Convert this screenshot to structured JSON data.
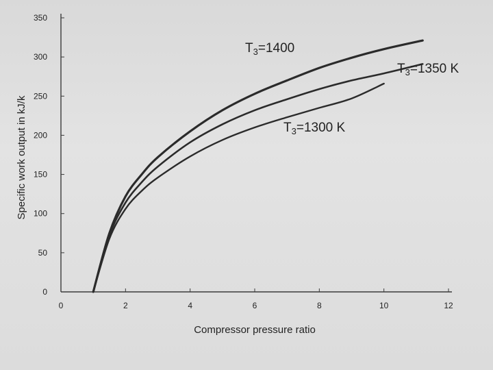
{
  "chart_data": {
    "type": "line",
    "title": "",
    "xlabel": "Compressor pressure ratio",
    "ylabel": "Specific work output in kJ/k",
    "xlim": [
      0,
      12
    ],
    "ylim": [
      0,
      350
    ],
    "x_ticks": [
      "0",
      "2",
      "4",
      "6",
      "8",
      "10",
      "12"
    ],
    "y_ticks": [
      "0",
      "50",
      "100",
      "150",
      "200",
      "250",
      "300",
      "350"
    ],
    "grid": false,
    "legend": "none",
    "series": [
      {
        "name": "T3=1400",
        "label_prefix": "T",
        "label_sub": "3",
        "label_rest": "=1400",
        "x": [
          1,
          1.5,
          2,
          2.5,
          3,
          4,
          5,
          6,
          7,
          8,
          9,
          10,
          11.2
        ],
        "values": [
          0,
          75,
          122,
          150,
          172,
          205,
          232,
          253,
          270,
          286,
          299,
          310,
          321
        ]
      },
      {
        "name": "T3=1350 K",
        "label_prefix": "T",
        "label_sub": "3",
        "label_rest": "=1350 K",
        "x": [
          1,
          1.5,
          2,
          2.5,
          3,
          4,
          5,
          6,
          7,
          8,
          9,
          10,
          11.2
        ],
        "values": [
          0,
          72,
          114,
          140,
          160,
          191,
          214,
          232,
          246,
          259,
          270,
          279,
          291
        ]
      },
      {
        "name": "T3=1300 K",
        "label_prefix": "T",
        "label_sub": "3",
        "label_rest": "=1300 K",
        "x": [
          1,
          1.5,
          2,
          2.5,
          3,
          4,
          5,
          6,
          7,
          8,
          9,
          10
        ],
        "values": [
          0,
          68,
          106,
          129,
          146,
          173,
          194,
          210,
          223,
          235,
          247,
          266
        ]
      }
    ]
  }
}
